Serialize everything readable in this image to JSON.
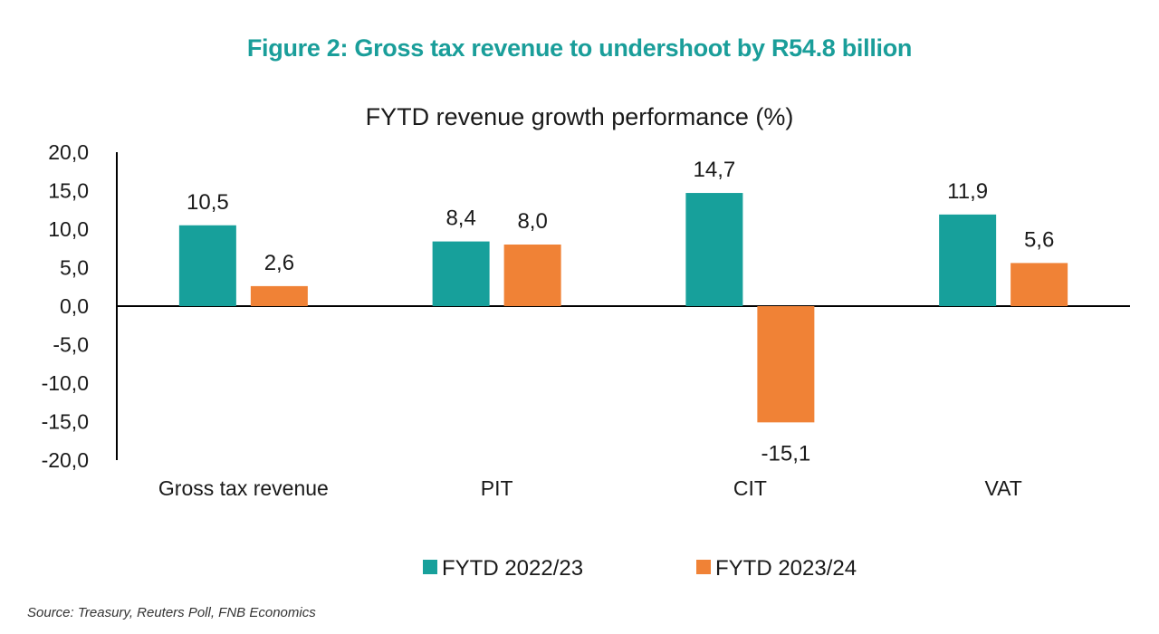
{
  "figure": {
    "title": "Figure 2: Gross tax revenue to undershoot by R54.8 billion",
    "source": "Source: Treasury, Reuters Poll, FNB Economics"
  },
  "colors": {
    "title": "#1a9e9a",
    "series_2022": "#17a09b",
    "series_2023": "#f08236",
    "axis": "#000000"
  },
  "chart_data": {
    "type": "bar",
    "title": "FYTD revenue growth performance (%)",
    "xlabel": "",
    "ylabel": "",
    "categories": [
      "Gross tax revenue",
      "PIT",
      "CIT",
      "VAT"
    ],
    "series": [
      {
        "name": "FYTD 2022/23",
        "values": [
          10.5,
          8.4,
          14.7,
          11.9
        ],
        "labels": [
          "10,5",
          "8,4",
          "14,7",
          "11,9"
        ]
      },
      {
        "name": "FYTD 2023/24",
        "values": [
          2.6,
          8.0,
          -15.1,
          5.6
        ],
        "labels": [
          "2,6",
          "8,0",
          "-15,1",
          "5,6"
        ]
      }
    ],
    "ylim": [
      -20,
      20
    ],
    "yticks": [
      20,
      15,
      10,
      5,
      0,
      -5,
      -10,
      -15,
      -20
    ],
    "ytick_labels": [
      "20,0",
      "15,0",
      "10,0",
      "5,0",
      "0,0",
      "-5,0",
      "-10,0",
      "-15,0",
      "-20,0"
    ],
    "grid": false,
    "legend": "bottom-center"
  }
}
